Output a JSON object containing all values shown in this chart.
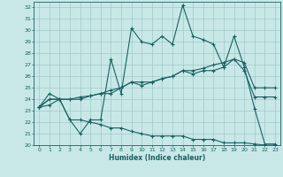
{
  "xlabel": "Humidex (Indice chaleur)",
  "xlim": [
    -0.5,
    23.5
  ],
  "ylim": [
    20,
    32.5
  ],
  "yticks": [
    20,
    21,
    22,
    23,
    24,
    25,
    26,
    27,
    28,
    29,
    30,
    31,
    32
  ],
  "xticks": [
    0,
    1,
    2,
    3,
    4,
    5,
    6,
    7,
    8,
    9,
    10,
    11,
    12,
    13,
    14,
    15,
    16,
    17,
    18,
    19,
    20,
    21,
    22,
    23
  ],
  "bg_color": "#c8e8e8",
  "grid_color": "#a0c8c8",
  "line_color": "#1a6060",
  "line1": [
    23.3,
    24.5,
    24.0,
    22.2,
    21.0,
    22.2,
    22.2,
    27.5,
    24.5,
    30.2,
    29.0,
    28.8,
    29.5,
    28.8,
    32.2,
    29.5,
    29.2,
    28.8,
    26.8,
    29.5,
    26.8,
    23.2,
    20.1,
    20.1
  ],
  "line2": [
    23.3,
    24.0,
    24.0,
    24.0,
    24.0,
    24.3,
    24.5,
    24.5,
    25.0,
    25.5,
    25.2,
    25.5,
    25.8,
    26.0,
    26.5,
    26.2,
    26.5,
    26.5,
    26.8,
    27.5,
    26.5,
    24.2,
    24.2,
    24.2
  ],
  "line3": [
    23.3,
    24.0,
    24.0,
    24.0,
    24.2,
    24.3,
    24.5,
    24.8,
    25.0,
    25.5,
    25.5,
    25.5,
    25.8,
    26.0,
    26.5,
    26.5,
    26.7,
    27.0,
    27.2,
    27.5,
    27.2,
    25.0,
    25.0,
    25.0
  ],
  "line4": [
    23.3,
    23.5,
    24.0,
    22.2,
    22.2,
    22.0,
    21.8,
    21.5,
    21.5,
    21.2,
    21.0,
    20.8,
    20.8,
    20.8,
    20.8,
    20.5,
    20.5,
    20.5,
    20.2,
    20.2,
    20.2,
    20.1,
    20.0,
    20.0
  ]
}
